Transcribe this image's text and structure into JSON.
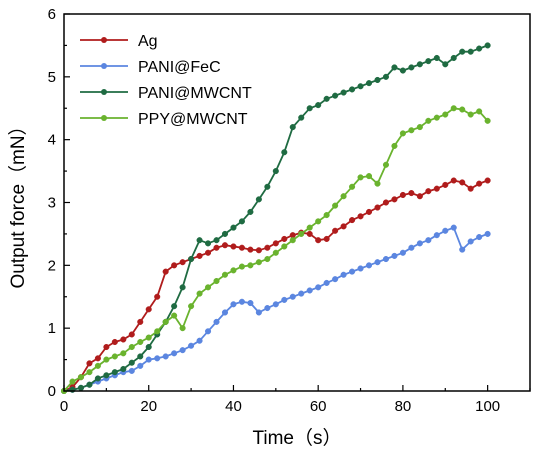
{
  "chart_data": {
    "type": "line",
    "title": "",
    "xlabel": "Time（s）",
    "ylabel": "Output force（mN）",
    "xlim": [
      0,
      110
    ],
    "ylim": [
      0,
      6
    ],
    "xticks": [
      0,
      20,
      40,
      60,
      80,
      100
    ],
    "yticks": [
      0,
      1,
      2,
      3,
      4,
      5,
      6
    ],
    "grid": false,
    "legend_position": "top-left",
    "series": [
      {
        "name": "Ag",
        "color": "#b01c1c",
        "x": [
          0,
          2,
          4,
          6,
          8,
          10,
          12,
          14,
          16,
          18,
          20,
          22,
          24,
          26,
          28,
          30,
          32,
          34,
          36,
          38,
          40,
          42,
          44,
          46,
          48,
          50,
          52,
          54,
          56,
          58,
          60,
          62,
          64,
          66,
          68,
          70,
          72,
          74,
          76,
          78,
          80,
          82,
          84,
          86,
          88,
          90,
          92,
          94,
          96,
          98,
          100
        ],
        "values": [
          0,
          0.06,
          0.22,
          0.44,
          0.52,
          0.7,
          0.78,
          0.82,
          0.9,
          1.1,
          1.3,
          1.5,
          1.9,
          2.0,
          2.05,
          2.1,
          2.15,
          2.2,
          2.28,
          2.32,
          2.3,
          2.28,
          2.25,
          2.24,
          2.28,
          2.35,
          2.42,
          2.48,
          2.52,
          2.5,
          2.4,
          2.42,
          2.55,
          2.62,
          2.72,
          2.78,
          2.85,
          2.92,
          3.0,
          3.05,
          3.12,
          3.15,
          3.1,
          3.18,
          3.22,
          3.28,
          3.35,
          3.32,
          3.22,
          3.3,
          3.35
        ]
      },
      {
        "name": "PANI@FeC",
        "color": "#5b86e0",
        "x": [
          0,
          2,
          4,
          6,
          8,
          10,
          12,
          14,
          16,
          18,
          20,
          22,
          24,
          26,
          28,
          30,
          32,
          34,
          36,
          38,
          40,
          42,
          44,
          46,
          48,
          50,
          52,
          54,
          56,
          58,
          60,
          62,
          64,
          66,
          68,
          70,
          72,
          74,
          76,
          78,
          80,
          82,
          84,
          86,
          88,
          90,
          92,
          94,
          96,
          98,
          100
        ],
        "values": [
          0,
          0.02,
          0.05,
          0.1,
          0.15,
          0.2,
          0.25,
          0.3,
          0.32,
          0.4,
          0.5,
          0.52,
          0.55,
          0.6,
          0.65,
          0.72,
          0.8,
          0.95,
          1.1,
          1.25,
          1.38,
          1.42,
          1.4,
          1.25,
          1.32,
          1.38,
          1.45,
          1.5,
          1.55,
          1.6,
          1.65,
          1.72,
          1.78,
          1.85,
          1.9,
          1.95,
          2.0,
          2.05,
          2.1,
          2.15,
          2.2,
          2.28,
          2.35,
          2.4,
          2.48,
          2.55,
          2.6,
          2.25,
          2.38,
          2.45,
          2.5
        ]
      },
      {
        "name": "PANI@MWCNT",
        "color": "#1f6b42",
        "x": [
          0,
          2,
          4,
          6,
          8,
          10,
          12,
          14,
          16,
          18,
          20,
          22,
          24,
          26,
          28,
          30,
          32,
          34,
          36,
          38,
          40,
          42,
          44,
          46,
          48,
          50,
          52,
          54,
          56,
          58,
          60,
          62,
          64,
          66,
          68,
          70,
          72,
          74,
          76,
          78,
          80,
          82,
          84,
          86,
          88,
          90,
          92,
          94,
          96,
          98,
          100
        ],
        "values": [
          0,
          0.02,
          0.05,
          0.1,
          0.2,
          0.25,
          0.3,
          0.35,
          0.45,
          0.55,
          0.7,
          0.9,
          1.1,
          1.35,
          1.65,
          2.1,
          2.4,
          2.35,
          2.4,
          2.5,
          2.6,
          2.7,
          2.85,
          3.05,
          3.25,
          3.5,
          3.8,
          4.2,
          4.35,
          4.5,
          4.55,
          4.65,
          4.7,
          4.75,
          4.8,
          4.85,
          4.9,
          4.95,
          5.0,
          5.15,
          5.1,
          5.15,
          5.2,
          5.25,
          5.3,
          5.2,
          5.3,
          5.4,
          5.4,
          5.45,
          5.5
        ]
      },
      {
        "name": "PPY@MWCNT",
        "color": "#6ab32e",
        "x": [
          0,
          2,
          4,
          6,
          8,
          10,
          12,
          14,
          16,
          18,
          20,
          22,
          24,
          26,
          28,
          30,
          32,
          34,
          36,
          38,
          40,
          42,
          44,
          46,
          48,
          50,
          52,
          54,
          56,
          58,
          60,
          62,
          64,
          66,
          68,
          70,
          72,
          74,
          76,
          78,
          80,
          82,
          84,
          86,
          88,
          90,
          92,
          94,
          96,
          98,
          100
        ],
        "values": [
          0,
          0.15,
          0.22,
          0.3,
          0.4,
          0.5,
          0.55,
          0.6,
          0.7,
          0.78,
          0.85,
          0.95,
          1.1,
          1.2,
          1.0,
          1.35,
          1.55,
          1.65,
          1.75,
          1.85,
          1.92,
          1.98,
          2.0,
          2.05,
          2.1,
          2.2,
          2.3,
          2.4,
          2.5,
          2.6,
          2.7,
          2.8,
          2.95,
          3.1,
          3.25,
          3.4,
          3.42,
          3.3,
          3.6,
          3.9,
          4.1,
          4.15,
          4.2,
          4.3,
          4.35,
          4.4,
          4.5,
          4.48,
          4.4,
          4.45,
          4.3
        ]
      }
    ]
  }
}
